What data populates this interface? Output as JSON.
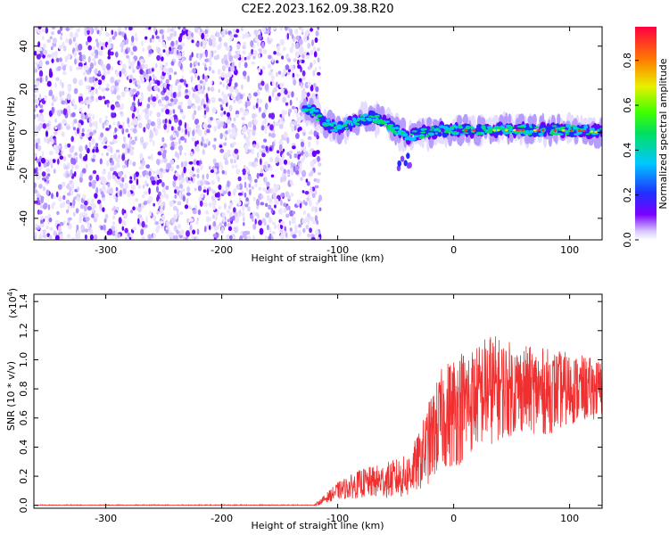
{
  "title": "C2E2.2023.162.09.38.R20",
  "top_panel": {
    "xlabel": "Height of straight line (km)",
    "ylabel": "Frequency (Hz)",
    "colorbar_label": "Normalized spectral amplitude"
  },
  "bottom_panel": {
    "xlabel": "Height of straight line (km)",
    "ylabel": "SNR (10 * v/v)",
    "scale_label": "(x10",
    "scale_exp": "4",
    "scale_close": ")"
  },
  "colors": {
    "snr_line": "#f03030",
    "strong": "#6a00ff"
  },
  "chart_data": [
    {
      "type": "heatmap",
      "title": "C2E2.2023.162.09.38.R20",
      "xlabel": "Height of straight line (km)",
      "ylabel": "Frequency (Hz)",
      "xlim": [
        -362,
        128
      ],
      "ylim": [
        -50,
        49
      ],
      "x_ticks": [
        -300,
        -200,
        -100,
        0,
        100
      ],
      "x_tick_labels": [
        "-300",
        "-200",
        "-100",
        "0",
        "100"
      ],
      "y_ticks": [
        -40,
        -20,
        0,
        20,
        40
      ],
      "y_tick_labels": [
        "-40",
        "-20",
        "0",
        "20",
        "40"
      ],
      "noise_region_x": [
        -362,
        -115
      ],
      "signal_ridge": {
        "x": [
          -130,
          -120,
          -110,
          -100,
          -90,
          -80,
          -70,
          -60,
          -50,
          -40,
          -30,
          -20,
          -10,
          0,
          20,
          40,
          60,
          80,
          100,
          128
        ],
        "freq": [
          12,
          9,
          4,
          2,
          4,
          6,
          7,
          5,
          1,
          -2,
          -1,
          0,
          1,
          1,
          1,
          1,
          1,
          1,
          1,
          0
        ]
      },
      "colorbar": {
        "label": "Normalized spectral amplitude",
        "range": [
          0.0,
          0.95
        ],
        "ticks": [
          0.0,
          0.2,
          0.4,
          0.6,
          0.8
        ],
        "tick_labels": [
          "0.0",
          "0.2",
          "0.4",
          "0.6",
          "0.8"
        ]
      }
    },
    {
      "type": "line",
      "xlabel": "Height of straight line (km)",
      "ylabel": "SNR (10 * v/v)",
      "y_scale": "x10^4",
      "xlim": [
        -362,
        128
      ],
      "ylim": [
        -0.02,
        1.45
      ],
      "x_ticks": [
        -300,
        -200,
        -100,
        0,
        100
      ],
      "x_tick_labels": [
        "-300",
        "-200",
        "-100",
        "0",
        "100"
      ],
      "y_ticks": [
        0.0,
        0.2,
        0.4,
        0.6,
        0.8,
        1.0,
        1.2,
        1.4
      ],
      "y_tick_labels": [
        "0.0",
        "0.2",
        "0.4",
        "0.6",
        "0.8",
        "1.0",
        "1.2",
        "1.4"
      ],
      "envelope": {
        "x": [
          -362,
          -120,
          -100,
          -80,
          -60,
          -40,
          -30,
          -20,
          -10,
          0,
          10,
          20,
          30,
          40,
          60,
          80,
          100,
          128
        ],
        "mean": [
          0.0,
          0.0,
          0.1,
          0.15,
          0.17,
          0.2,
          0.3,
          0.45,
          0.6,
          0.65,
          0.7,
          0.75,
          0.8,
          0.8,
          0.8,
          0.78,
          0.8,
          0.8
        ],
        "amplitude": [
          0.005,
          0.005,
          0.06,
          0.1,
          0.12,
          0.15,
          0.2,
          0.3,
          0.35,
          0.4,
          0.4,
          0.35,
          0.4,
          0.35,
          0.3,
          0.3,
          0.25,
          0.2
        ]
      }
    }
  ]
}
